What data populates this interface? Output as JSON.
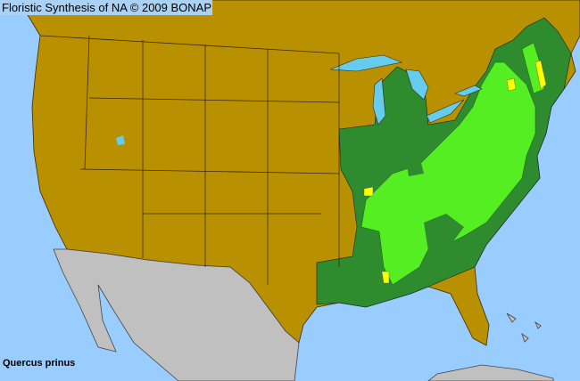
{
  "header": {
    "title": "Floristic Synthesis of NA © 2009 BONAP"
  },
  "species": {
    "name": "Quercus prinus"
  },
  "colors": {
    "ocean": "#99ccff",
    "no_record_land": "#b89000",
    "outside_range": "#c0c0c0",
    "native_state": "#2e8b2e",
    "native_county": "#55ee22",
    "rare_county": "#ffff00",
    "borders": "#3a2a00"
  }
}
